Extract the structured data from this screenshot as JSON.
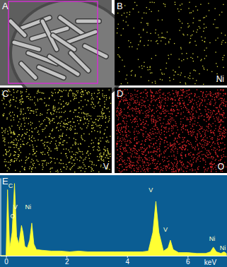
{
  "panels": [
    {
      "label": "A"
    },
    {
      "label": "B",
      "element": "Ni"
    },
    {
      "label": "C",
      "element": "V"
    },
    {
      "label": "D",
      "element": "O"
    },
    {
      "label": "E"
    }
  ],
  "chart_data": {
    "type": "area",
    "color": "#ffff33",
    "x": [
      -0.2,
      -0.05,
      0.0,
      0.05,
      0.12,
      0.2,
      0.28,
      0.35,
      0.42,
      0.51,
      0.56,
      0.62,
      0.7,
      0.78,
      0.85,
      0.92,
      1.0,
      1.2,
      1.5,
      1.8,
      2.1,
      2.4,
      2.7,
      3.0,
      3.3,
      3.6,
      3.9,
      4.2,
      4.5,
      4.7,
      4.85,
      4.95,
      5.05,
      5.2,
      5.35,
      5.43,
      5.52,
      5.7,
      6.0,
      6.3,
      6.6,
      6.75,
      6.85,
      6.95,
      7.1,
      7.2,
      7.28
    ],
    "values": [
      0,
      0,
      0,
      85,
      10,
      30,
      93,
      25,
      15,
      39,
      30,
      12,
      10,
      20,
      42,
      15,
      8,
      7,
      6,
      6,
      5,
      6,
      5,
      5,
      5,
      5,
      5,
      5,
      5,
      6,
      30,
      70,
      30,
      6,
      10,
      20,
      8,
      4,
      4,
      3,
      3,
      5,
      11,
      5,
      3,
      5,
      3
    ],
    "xlim": [
      -0.2,
      7.3
    ],
    "xticks": [
      0,
      2,
      4,
      6
    ],
    "xlabel": "keV",
    "ylim": [
      0,
      100
    ],
    "tick_labels": "x",
    "annotations": [
      {
        "text": "C",
        "x": 0.15,
        "y": 89
      },
      {
        "text": "V",
        "x": 0.31,
        "y": 62
      },
      {
        "text": "O",
        "x": 0.22,
        "y": 50
      },
      {
        "text": "Ni",
        "x": 0.73,
        "y": 62
      },
      {
        "text": "V",
        "x": 4.78,
        "y": 84
      },
      {
        "text": "V",
        "x": 5.27,
        "y": 33
      },
      {
        "text": "Ni",
        "x": 6.81,
        "y": 21
      },
      {
        "text": "Ni",
        "x": 7.16,
        "y": 9
      }
    ]
  }
}
